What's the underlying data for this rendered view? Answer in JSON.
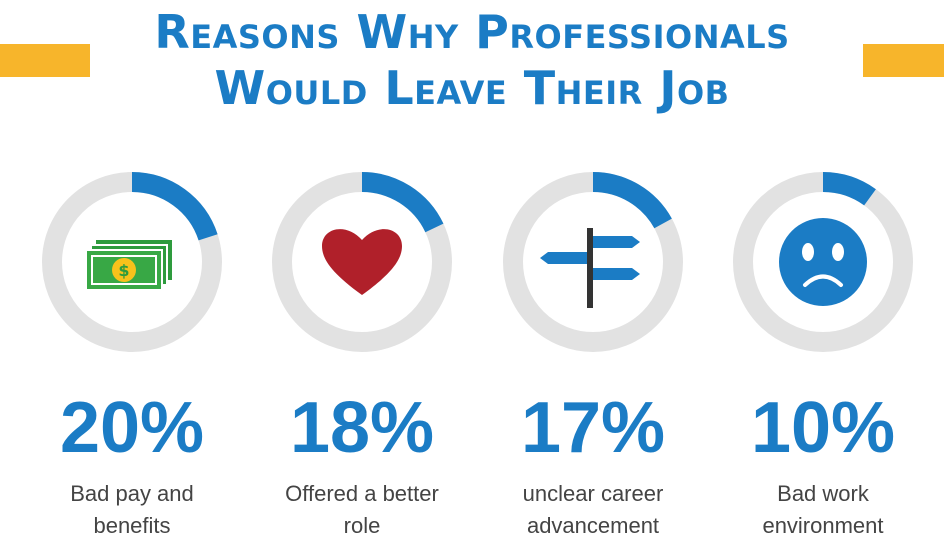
{
  "chart_data": {
    "type": "donut",
    "title": "Reasons Why Professionals Would Leave Their Job",
    "categories": [
      "Bad pay and benefits",
      "Offered a better role",
      "unclear career advancement",
      "Bad work environment"
    ],
    "values": [
      20,
      18,
      17,
      10
    ],
    "value_labels": [
      "20%",
      "18%",
      "17%",
      "10%"
    ],
    "color": "#1b7cc5",
    "track_color": "#e2e2e2"
  }
}
